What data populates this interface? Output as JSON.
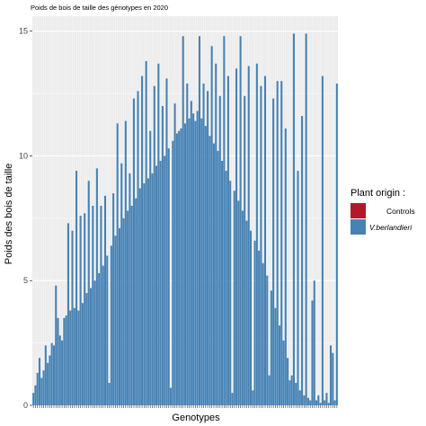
{
  "chart_data": {
    "type": "bar",
    "title": "Poids de bois de taille des génotypes en 2020",
    "xlabel": "Genotypes",
    "ylabel": "Poids des bois de taille",
    "ylim": [
      0,
      15.6
    ],
    "yticks": [
      0,
      5,
      10,
      15
    ],
    "grid": true,
    "legend_position": "right",
    "legend": {
      "title": "Plant origin :",
      "entries": [
        {
          "label": "Controls",
          "color": "#B2182B"
        },
        {
          "label": "V.berlandieri",
          "color": "#4682B4"
        }
      ]
    },
    "series": [
      {
        "name": "V.berlandieri",
        "color": "#4682B4",
        "values": [
          0.5,
          0.8,
          1.3,
          1.9,
          1.1,
          1.4,
          2.4,
          1.7,
          2.0,
          2.5,
          2.4,
          4.8,
          3.5,
          2.8,
          2.6,
          3.5,
          3.6,
          7.3,
          3.8,
          7.0,
          3.9,
          9.4,
          3.8,
          7.6,
          4.1,
          7.7,
          4.5,
          9.0,
          4.7,
          8.0,
          5.0,
          9.5,
          5.3,
          8.0,
          5.6,
          8.4,
          6.0,
          0.9,
          6.4,
          8.5,
          6.8,
          11.3,
          7.1,
          9.7,
          7.5,
          11.4,
          7.8,
          9.3,
          8.0,
          12.3,
          8.3,
          12.6,
          8.7,
          13.2,
          8.9,
          13.8,
          9.1,
          11.0,
          9.3,
          12.8,
          9.6,
          13.7,
          9.8,
          12.0,
          10.0,
          13.1,
          10.3,
          0.7,
          10.6,
          12.1,
          10.9,
          11.0,
          11.1,
          14.8,
          11.3,
          12.9,
          11.5,
          12.2,
          11.7,
          11.4,
          11.8,
          14.8,
          11.5,
          12.9,
          11.2,
          12.6,
          10.8,
          14.4,
          10.5,
          13.7,
          10.2,
          12.4,
          9.8,
          14.8,
          9.4,
          13.2,
          9.0,
          0.5,
          8.6,
          13.5,
          8.2,
          14.8,
          7.8,
          12.4,
          7.4,
          13.6,
          7.0,
          0.6,
          6.6,
          13.7,
          6.2,
          12.8,
          5.7,
          13.2,
          5.2,
          1.2,
          4.6,
          12.3,
          3.9,
          13.0,
          3.2,
          13.0,
          2.6,
          11.1,
          1.9,
          1.0,
          1.2,
          14.9,
          0.9,
          9.4,
          0.6,
          11.6,
          0.4,
          14.9,
          0.3,
          0.2,
          4.2,
          5.0,
          0.2,
          0.4,
          0.1,
          13.2,
          0.2,
          0.5,
          0.1,
          2.4,
          2.1,
          0.2,
          12.9
        ]
      }
    ]
  }
}
